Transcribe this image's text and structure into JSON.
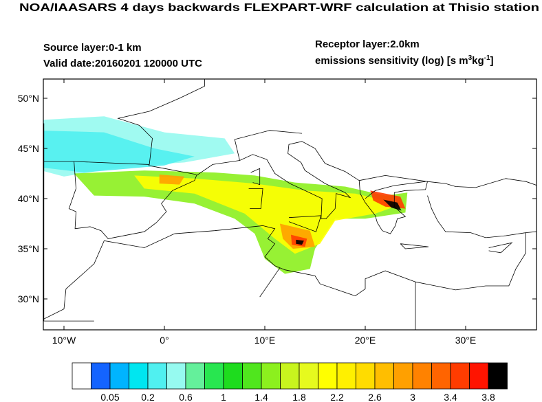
{
  "header": {
    "title": "NOA/IAASARS 4 days backwards FLEXPART-WRF calculation at Thisio station",
    "source_layer": "Source layer:0-1 km",
    "valid_date": "Valid date:20160201 120000 UTC",
    "receptor_layer": "Receptor layer:2.0km",
    "units": [
      "emissions sensitivity (log) [s m",
      "3",
      "kg",
      "-1",
      "]"
    ]
  },
  "map": {
    "lat_labels": [
      "50°N",
      "45°N",
      "40°N",
      "35°N",
      "30°N"
    ],
    "lon_labels": [
      "10°W",
      "0°",
      "10°E",
      "20°E",
      "30°E"
    ]
  },
  "colorbar": {
    "colors": [
      "#ffffff",
      "#1464ff",
      "#00b4ff",
      "#00e6f0",
      "#50f0f0",
      "#96faf0",
      "#64f09b",
      "#28e650",
      "#1edc1e",
      "#50e61e",
      "#8cf01e",
      "#c8f51e",
      "#e6fa1e",
      "#ffff00",
      "#fff000",
      "#ffdc00",
      "#ffbe00",
      "#ffa000",
      "#ff8200",
      "#ff6400",
      "#ff3c00",
      "#ff1400",
      "#000000"
    ],
    "labels": [
      "0.05",
      "0.2",
      "0.6",
      "1",
      "1.4",
      "1.8",
      "2.2",
      "2.6",
      "3",
      "3.4",
      "3.8"
    ]
  }
}
